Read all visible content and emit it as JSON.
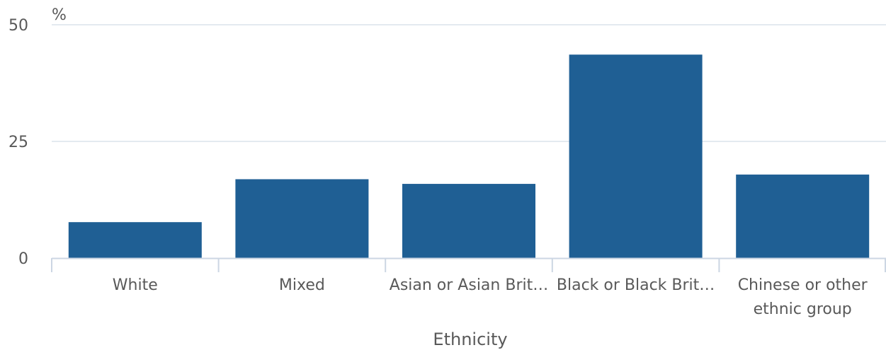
{
  "chart_data": {
    "type": "bar",
    "unit": "%",
    "xlabel": "Ethnicity",
    "categories": [
      "White",
      "Mixed",
      "Asian or Asian Brit…",
      "Black or Black Brit…",
      "Chinese or other ethnic group"
    ],
    "values": [
      7.7,
      16.9,
      15.9,
      43.6,
      17.9
    ],
    "ylim": [
      0,
      50
    ],
    "yticks": [
      0,
      25,
      50
    ],
    "grid": true,
    "legend": "none",
    "bar_color": "#1f5f94",
    "grid_color": "#dce3ec",
    "axis_color": "#ccd6e3"
  }
}
